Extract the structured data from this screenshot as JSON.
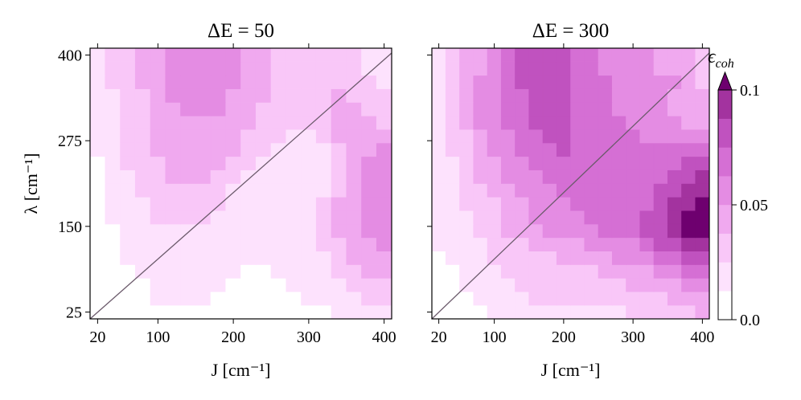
{
  "chart_data": [
    {
      "type": "heatmap",
      "title": "ΔE = 50",
      "x_label": "J [cm⁻¹]",
      "y_label": "λ [cm⁻¹]",
      "x": [
        20,
        40,
        60,
        80,
        100,
        120,
        140,
        160,
        180,
        200,
        220,
        240,
        260,
        280,
        300,
        320,
        340,
        360,
        380,
        400
      ],
      "y": [
        25,
        44.74,
        64.47,
        84.21,
        103.95,
        123.68,
        143.42,
        163.16,
        182.89,
        202.63,
        222.37,
        242.11,
        261.84,
        281.58,
        301.32,
        321.05,
        340.79,
        360.53,
        380.26,
        400
      ],
      "xlim": [
        10,
        410
      ],
      "ylim": [
        15,
        410
      ],
      "xticks": [
        20,
        100,
        200,
        300,
        400
      ],
      "yticks": [
        25,
        150,
        275,
        400
      ],
      "show_ytick_labels": true,
      "z": [
        [
          0.01,
          0.01,
          0.01,
          0.01,
          0.01,
          0.01,
          0.01,
          0.01,
          0.01,
          0.01,
          0.01,
          0.01,
          0.01,
          0.01,
          0.01,
          0.01,
          0.02,
          0.02,
          0.02,
          0.02
        ],
        [
          0.01,
          0.01,
          0.01,
          0.01,
          0.02,
          0.02,
          0.02,
          0.02,
          0.01,
          0.01,
          0.01,
          0.01,
          0.01,
          0.01,
          0.02,
          0.02,
          0.02,
          0.02,
          0.03,
          0.03
        ],
        [
          0.01,
          0.01,
          0.01,
          0.01,
          0.02,
          0.02,
          0.02,
          0.02,
          0.02,
          0.01,
          0.01,
          0.01,
          0.01,
          0.02,
          0.02,
          0.02,
          0.02,
          0.03,
          0.03,
          0.03
        ],
        [
          0.01,
          0.01,
          0.01,
          0.02,
          0.02,
          0.02,
          0.02,
          0.02,
          0.02,
          0.02,
          0.01,
          0.01,
          0.02,
          0.02,
          0.02,
          0.02,
          0.03,
          0.03,
          0.04,
          0.04
        ],
        [
          0.01,
          0.01,
          0.02,
          0.02,
          0.02,
          0.02,
          0.02,
          0.02,
          0.02,
          0.02,
          0.02,
          0.02,
          0.02,
          0.02,
          0.02,
          0.02,
          0.03,
          0.04,
          0.04,
          0.04
        ],
        [
          0.01,
          0.01,
          0.02,
          0.02,
          0.02,
          0.02,
          0.02,
          0.02,
          0.02,
          0.02,
          0.02,
          0.02,
          0.02,
          0.02,
          0.02,
          0.03,
          0.03,
          0.04,
          0.04,
          0.06
        ],
        [
          0.01,
          0.01,
          0.02,
          0.02,
          0.02,
          0.02,
          0.02,
          0.02,
          0.02,
          0.02,
          0.02,
          0.02,
          0.02,
          0.02,
          0.02,
          0.03,
          0.04,
          0.04,
          0.06,
          0.06
        ],
        [
          0.01,
          0.02,
          0.02,
          0.02,
          0.03,
          0.03,
          0.03,
          0.03,
          0.02,
          0.02,
          0.02,
          0.02,
          0.02,
          0.02,
          0.02,
          0.03,
          0.04,
          0.04,
          0.06,
          0.06
        ],
        [
          0.01,
          0.02,
          0.02,
          0.02,
          0.03,
          0.03,
          0.03,
          0.03,
          0.03,
          0.02,
          0.02,
          0.02,
          0.02,
          0.02,
          0.02,
          0.03,
          0.04,
          0.04,
          0.06,
          0.06
        ],
        [
          0.01,
          0.02,
          0.02,
          0.03,
          0.03,
          0.03,
          0.03,
          0.03,
          0.03,
          0.02,
          0.02,
          0.02,
          0.02,
          0.02,
          0.02,
          0.02,
          0.03,
          0.04,
          0.06,
          0.06
        ],
        [
          0.01,
          0.02,
          0.02,
          0.03,
          0.03,
          0.04,
          0.04,
          0.04,
          0.03,
          0.03,
          0.02,
          0.02,
          0.02,
          0.02,
          0.02,
          0.02,
          0.03,
          0.04,
          0.06,
          0.06
        ],
        [
          0.01,
          0.02,
          0.03,
          0.03,
          0.03,
          0.04,
          0.04,
          0.04,
          0.04,
          0.03,
          0.03,
          0.02,
          0.02,
          0.02,
          0.02,
          0.02,
          0.03,
          0.04,
          0.06,
          0.06
        ],
        [
          0.02,
          0.02,
          0.03,
          0.03,
          0.04,
          0.04,
          0.04,
          0.04,
          0.04,
          0.04,
          0.03,
          0.03,
          0.02,
          0.02,
          0.02,
          0.02,
          0.03,
          0.04,
          0.04,
          0.06
        ],
        [
          0.02,
          0.02,
          0.03,
          0.03,
          0.04,
          0.04,
          0.04,
          0.04,
          0.04,
          0.04,
          0.03,
          0.03,
          0.03,
          0.02,
          0.02,
          0.03,
          0.04,
          0.04,
          0.04,
          0.04
        ],
        [
          0.02,
          0.02,
          0.03,
          0.03,
          0.04,
          0.04,
          0.04,
          0.04,
          0.04,
          0.04,
          0.04,
          0.03,
          0.03,
          0.03,
          0.03,
          0.03,
          0.04,
          0.04,
          0.04,
          0.03
        ],
        [
          0.02,
          0.02,
          0.03,
          0.03,
          0.04,
          0.04,
          0.06,
          0.06,
          0.06,
          0.04,
          0.04,
          0.03,
          0.03,
          0.03,
          0.03,
          0.03,
          0.04,
          0.04,
          0.03,
          0.03
        ],
        [
          0.02,
          0.02,
          0.03,
          0.03,
          0.04,
          0.06,
          0.06,
          0.06,
          0.06,
          0.04,
          0.04,
          0.04,
          0.03,
          0.03,
          0.03,
          0.03,
          0.04,
          0.03,
          0.03,
          0.03
        ],
        [
          0.02,
          0.03,
          0.03,
          0.04,
          0.04,
          0.06,
          0.06,
          0.06,
          0.06,
          0.06,
          0.04,
          0.04,
          0.03,
          0.03,
          0.03,
          0.03,
          0.03,
          0.03,
          0.03,
          0.02
        ],
        [
          0.02,
          0.03,
          0.03,
          0.04,
          0.04,
          0.06,
          0.06,
          0.06,
          0.06,
          0.06,
          0.04,
          0.04,
          0.03,
          0.03,
          0.03,
          0.03,
          0.03,
          0.03,
          0.02,
          0.02
        ],
        [
          0.02,
          0.03,
          0.03,
          0.04,
          0.04,
          0.06,
          0.06,
          0.06,
          0.06,
          0.06,
          0.04,
          0.04,
          0.03,
          0.03,
          0.03,
          0.03,
          0.03,
          0.03,
          0.02,
          0.02
        ]
      ]
    },
    {
      "type": "heatmap",
      "title": "ΔE = 300",
      "x_label": "J [cm⁻¹]",
      "x": [
        20,
        40,
        60,
        80,
        100,
        120,
        140,
        160,
        180,
        200,
        220,
        240,
        260,
        280,
        300,
        320,
        340,
        360,
        380,
        400
      ],
      "y": [
        25,
        44.74,
        64.47,
        84.21,
        103.95,
        123.68,
        143.42,
        163.16,
        182.89,
        202.63,
        222.37,
        242.11,
        261.84,
        281.58,
        301.32,
        321.05,
        340.79,
        360.53,
        380.26,
        400
      ],
      "xlim": [
        10,
        410
      ],
      "ylim": [
        15,
        410
      ],
      "xticks": [
        20,
        100,
        200,
        300,
        400
      ],
      "yticks": [
        25,
        150,
        275,
        400
      ],
      "show_ytick_labels": false,
      "z": [
        [
          0.01,
          0.01,
          0.01,
          0.01,
          0.02,
          0.02,
          0.02,
          0.02,
          0.02,
          0.02,
          0.02,
          0.02,
          0.02,
          0.02,
          0.03,
          0.03,
          0.03,
          0.03,
          0.03,
          0.04
        ],
        [
          0.01,
          0.01,
          0.01,
          0.02,
          0.02,
          0.02,
          0.02,
          0.03,
          0.03,
          0.03,
          0.03,
          0.03,
          0.03,
          0.03,
          0.03,
          0.03,
          0.03,
          0.04,
          0.04,
          0.04
        ],
        [
          0.01,
          0.01,
          0.02,
          0.02,
          0.02,
          0.02,
          0.03,
          0.03,
          0.03,
          0.03,
          0.03,
          0.03,
          0.03,
          0.03,
          0.04,
          0.04,
          0.04,
          0.04,
          0.06,
          0.06
        ],
        [
          0.01,
          0.01,
          0.02,
          0.02,
          0.02,
          0.03,
          0.03,
          0.03,
          0.03,
          0.03,
          0.03,
          0.03,
          0.04,
          0.04,
          0.04,
          0.04,
          0.06,
          0.06,
          0.07,
          0.07
        ],
        [
          0.01,
          0.02,
          0.02,
          0.02,
          0.03,
          0.03,
          0.03,
          0.03,
          0.03,
          0.04,
          0.04,
          0.04,
          0.04,
          0.06,
          0.06,
          0.06,
          0.07,
          0.07,
          0.08,
          0.08
        ],
        [
          0.02,
          0.02,
          0.02,
          0.02,
          0.03,
          0.03,
          0.03,
          0.04,
          0.04,
          0.04,
          0.04,
          0.06,
          0.06,
          0.06,
          0.06,
          0.07,
          0.08,
          0.08,
          0.09,
          0.09
        ],
        [
          0.02,
          0.02,
          0.02,
          0.03,
          0.03,
          0.04,
          0.04,
          0.04,
          0.06,
          0.06,
          0.06,
          0.06,
          0.07,
          0.07,
          0.07,
          0.08,
          0.08,
          0.09,
          0.11,
          0.11
        ],
        [
          0.02,
          0.02,
          0.02,
          0.03,
          0.03,
          0.04,
          0.04,
          0.06,
          0.06,
          0.06,
          0.06,
          0.07,
          0.07,
          0.07,
          0.07,
          0.08,
          0.08,
          0.09,
          0.11,
          0.11
        ],
        [
          0.02,
          0.02,
          0.03,
          0.03,
          0.03,
          0.04,
          0.04,
          0.06,
          0.06,
          0.06,
          0.07,
          0.07,
          0.07,
          0.07,
          0.07,
          0.07,
          0.08,
          0.09,
          0.09,
          0.11
        ],
        [
          0.02,
          0.02,
          0.03,
          0.03,
          0.04,
          0.04,
          0.06,
          0.06,
          0.06,
          0.07,
          0.07,
          0.07,
          0.07,
          0.07,
          0.07,
          0.07,
          0.08,
          0.08,
          0.09,
          0.09
        ],
        [
          0.02,
          0.02,
          0.03,
          0.04,
          0.04,
          0.06,
          0.06,
          0.06,
          0.07,
          0.07,
          0.07,
          0.07,
          0.07,
          0.07,
          0.07,
          0.07,
          0.07,
          0.08,
          0.08,
          0.09
        ],
        [
          0.02,
          0.02,
          0.03,
          0.04,
          0.04,
          0.06,
          0.06,
          0.07,
          0.07,
          0.07,
          0.07,
          0.07,
          0.07,
          0.07,
          0.07,
          0.07,
          0.07,
          0.07,
          0.08,
          0.08
        ],
        [
          0.02,
          0.03,
          0.03,
          0.04,
          0.06,
          0.06,
          0.07,
          0.07,
          0.07,
          0.08,
          0.07,
          0.07,
          0.07,
          0.07,
          0.07,
          0.07,
          0.07,
          0.07,
          0.07,
          0.07
        ],
        [
          0.02,
          0.03,
          0.03,
          0.04,
          0.06,
          0.06,
          0.07,
          0.07,
          0.08,
          0.08,
          0.07,
          0.07,
          0.07,
          0.07,
          0.07,
          0.06,
          0.06,
          0.06,
          0.06,
          0.06
        ],
        [
          0.02,
          0.03,
          0.04,
          0.06,
          0.06,
          0.07,
          0.07,
          0.08,
          0.08,
          0.08,
          0.07,
          0.07,
          0.07,
          0.07,
          0.06,
          0.06,
          0.06,
          0.06,
          0.04,
          0.04
        ],
        [
          0.02,
          0.03,
          0.04,
          0.06,
          0.06,
          0.07,
          0.07,
          0.08,
          0.08,
          0.08,
          0.07,
          0.07,
          0.07,
          0.06,
          0.06,
          0.06,
          0.06,
          0.04,
          0.04,
          0.04
        ],
        [
          0.02,
          0.03,
          0.04,
          0.06,
          0.06,
          0.07,
          0.07,
          0.08,
          0.08,
          0.08,
          0.07,
          0.07,
          0.07,
          0.06,
          0.06,
          0.06,
          0.06,
          0.04,
          0.04,
          0.04
        ],
        [
          0.02,
          0.03,
          0.04,
          0.06,
          0.06,
          0.07,
          0.08,
          0.08,
          0.08,
          0.08,
          0.07,
          0.07,
          0.07,
          0.06,
          0.06,
          0.06,
          0.06,
          0.06,
          0.04,
          0.03
        ],
        [
          0.02,
          0.03,
          0.04,
          0.04,
          0.06,
          0.07,
          0.08,
          0.08,
          0.08,
          0.08,
          0.07,
          0.07,
          0.06,
          0.06,
          0.06,
          0.06,
          0.04,
          0.04,
          0.04,
          0.03
        ],
        [
          0.02,
          0.03,
          0.04,
          0.04,
          0.06,
          0.07,
          0.08,
          0.08,
          0.08,
          0.08,
          0.07,
          0.07,
          0.06,
          0.06,
          0.06,
          0.06,
          0.04,
          0.04,
          0.04,
          0.03
        ]
      ],
      "colorbar": {
        "label": "ϵ",
        "label_subscript": "coh",
        "levels": [
          0,
          0.0125,
          0.025,
          0.0375,
          0.05,
          0.0625,
          0.075,
          0.0875,
          0.1
        ],
        "colors": [
          "#ffffff",
          "#fde2fd",
          "#f9c7f8",
          "#f0a9ef",
          "#e48ce3",
          "#d56fd4",
          "#c052bf",
          "#a3339f"
        ],
        "extend_color": "#6e006f",
        "ylim": [
          0,
          0.1
        ],
        "yticks": [
          {
            "value": 0,
            "label": "0.0"
          },
          0.05,
          0.1
        ]
      }
    }
  ]
}
